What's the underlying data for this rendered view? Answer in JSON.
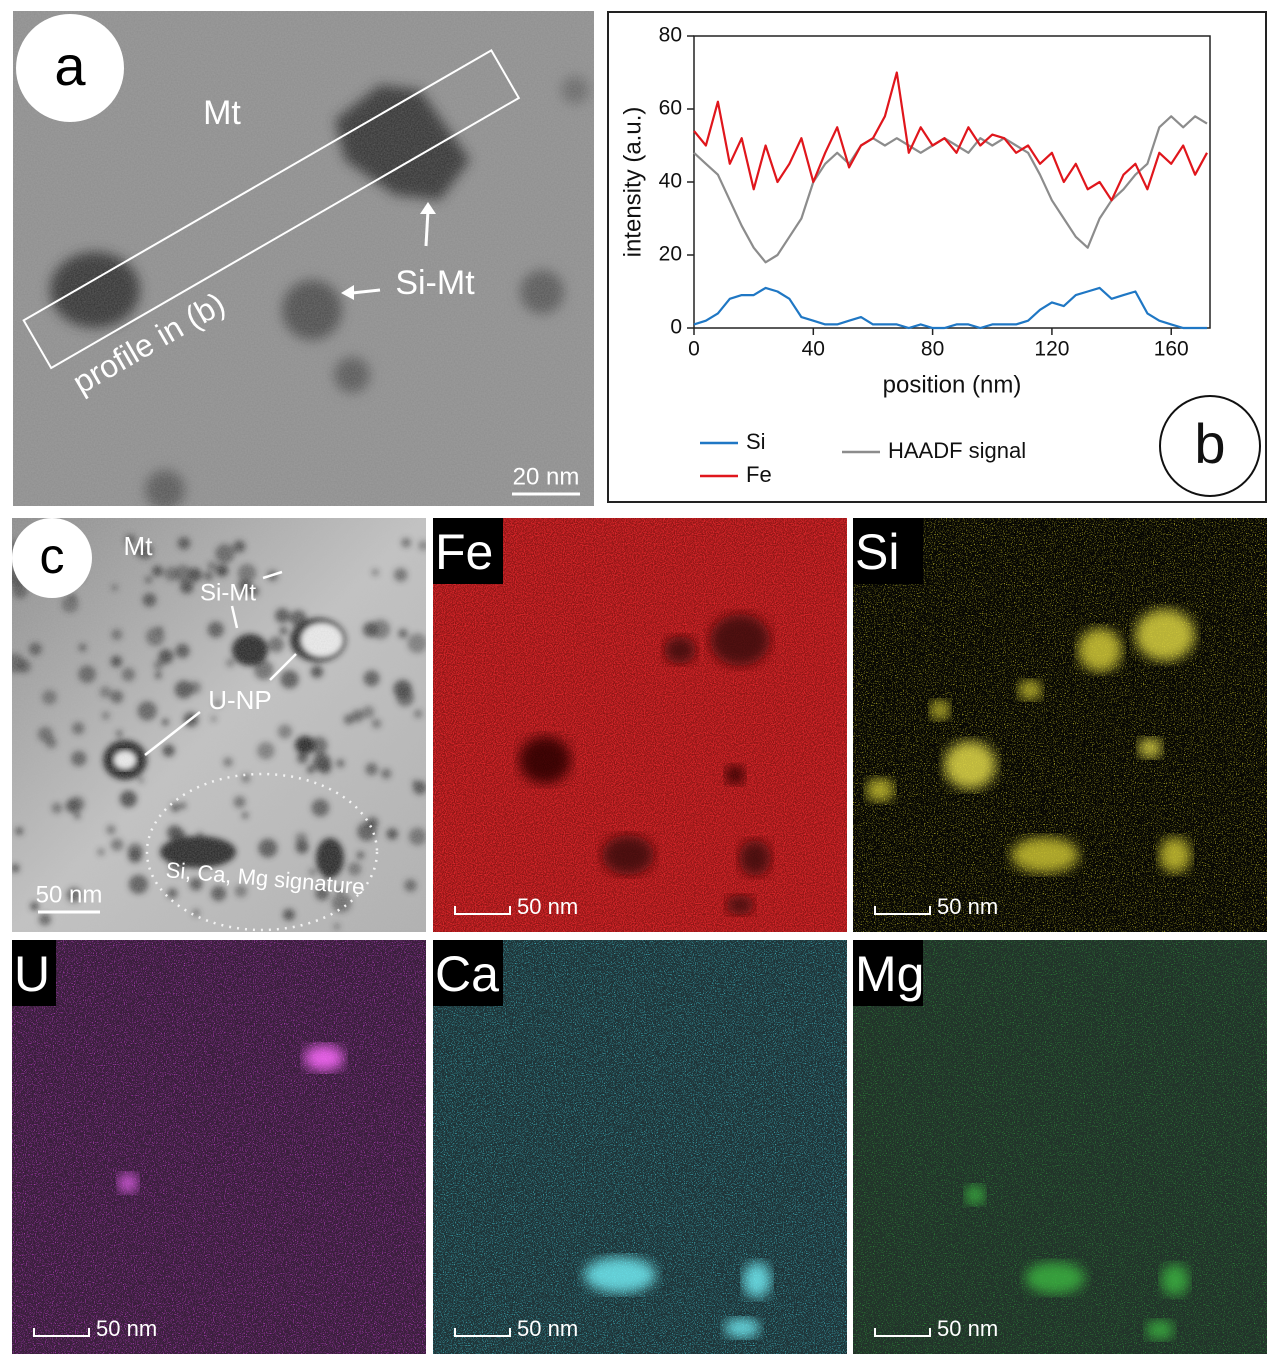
{
  "panel_a": {
    "label": "a",
    "matrix_label": "Mt",
    "particle_label": "Si-Mt",
    "profile_label": "profile in (b)",
    "scale_bar": "20 nm"
  },
  "chart_data": {
    "type": "line",
    "panel_label": "b",
    "xlabel": "position (nm)",
    "ylabel": "intensity (a.u.)",
    "x": [
      0,
      4,
      8,
      12,
      16,
      20,
      24,
      28,
      32,
      36,
      40,
      44,
      48,
      52,
      56,
      60,
      64,
      68,
      72,
      76,
      80,
      84,
      88,
      92,
      96,
      100,
      104,
      108,
      112,
      116,
      120,
      124,
      128,
      132,
      136,
      140,
      144,
      148,
      152,
      156,
      160,
      164,
      168,
      172
    ],
    "series": [
      {
        "name": "Si",
        "color": "#1f77c4",
        "values": [
          1,
          2,
          4,
          8,
          9,
          9,
          11,
          10,
          8,
          3,
          2,
          1,
          1,
          2,
          3,
          1,
          1,
          1,
          0,
          1,
          0,
          0,
          1,
          1,
          0,
          1,
          1,
          1,
          2,
          5,
          7,
          6,
          9,
          10,
          11,
          8,
          9,
          10,
          4,
          2,
          1,
          0,
          0,
          0
        ]
      },
      {
        "name": "Fe",
        "color": "#e0161c",
        "values": [
          54,
          50,
          62,
          45,
          52,
          38,
          50,
          40,
          45,
          52,
          40,
          48,
          55,
          44,
          50,
          52,
          58,
          70,
          48,
          55,
          50,
          52,
          48,
          55,
          50,
          53,
          52,
          48,
          50,
          45,
          48,
          40,
          45,
          38,
          40,
          35,
          42,
          45,
          38,
          48,
          45,
          50,
          42,
          48
        ]
      },
      {
        "name": "HAADF signal",
        "color": "#8c8c8c",
        "values": [
          48,
          45,
          42,
          35,
          28,
          22,
          18,
          20,
          25,
          30,
          40,
          45,
          48,
          45,
          50,
          52,
          50,
          52,
          50,
          48,
          50,
          52,
          50,
          48,
          52,
          50,
          52,
          50,
          48,
          42,
          35,
          30,
          25,
          22,
          30,
          35,
          38,
          42,
          45,
          55,
          58,
          55,
          58,
          56
        ]
      }
    ],
    "xlim": [
      0,
      173
    ],
    "xticks": [
      0,
      40,
      80,
      120,
      160
    ],
    "ylim": [
      0,
      80
    ],
    "yticks": [
      0,
      20,
      40,
      60,
      80
    ]
  },
  "panel_c": {
    "label": "c",
    "matrix_label": "Mt",
    "particle_label": "Si-Mt",
    "np_label": "U-NP",
    "region_label": "Si, Ca, Mg signature",
    "scale_bar": "50 nm"
  },
  "maps": [
    {
      "element": "Fe",
      "scale_bar": "50 nm"
    },
    {
      "element": "Si",
      "scale_bar": "50 nm"
    },
    {
      "element": "U",
      "scale_bar": "50 nm"
    },
    {
      "element": "Ca",
      "scale_bar": "50 nm"
    },
    {
      "element": "Mg",
      "scale_bar": "50 nm"
    }
  ]
}
